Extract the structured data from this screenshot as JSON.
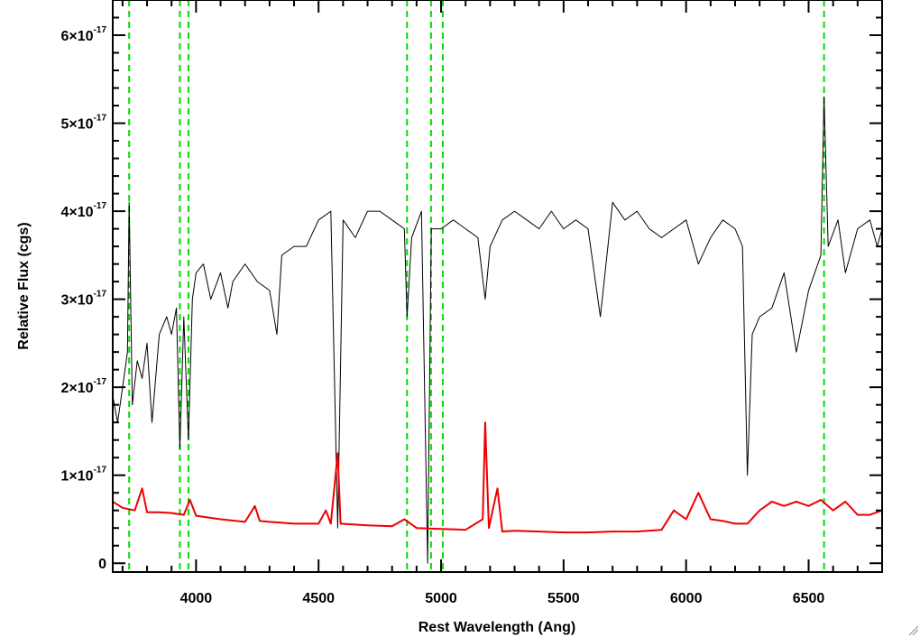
{
  "chart_data": {
    "type": "line",
    "xlabel": "Rest Wavelength (Ang)",
    "ylabel": "Relative Flux (cgs)",
    "xlim": [
      3660,
      6800
    ],
    "ylim": [
      -0.1,
      6.4
    ],
    "y_scale_note": "1e-17",
    "x_ticks": [
      {
        "value": 4000,
        "label": "4000"
      },
      {
        "value": 4500,
        "label": "4500"
      },
      {
        "value": 5000,
        "label": "5000"
      },
      {
        "value": 5500,
        "label": "5500"
      },
      {
        "value": 6000,
        "label": "6000"
      },
      {
        "value": 6500,
        "label": "6500"
      }
    ],
    "y_ticks": [
      {
        "value": 0,
        "mantissa": "0",
        "exp": ""
      },
      {
        "value": 1,
        "mantissa": "1×10",
        "exp": "-17"
      },
      {
        "value": 2,
        "mantissa": "2×10",
        "exp": "-17"
      },
      {
        "value": 3,
        "mantissa": "3×10",
        "exp": "-17"
      },
      {
        "value": 4,
        "mantissa": "4×10",
        "exp": "-17"
      },
      {
        "value": 5,
        "mantissa": "5×10",
        "exp": "-17"
      },
      {
        "value": 6,
        "mantissa": "6×10",
        "exp": "-17"
      }
    ],
    "grid": false,
    "reference_lines": {
      "color": "#00dd00",
      "style": "dashed",
      "x": [
        3727,
        3934,
        3969,
        4861,
        4959,
        5007,
        6563
      ]
    },
    "series": [
      {
        "role": "observed",
        "color": "#000000",
        "points": [
          [
            3660,
            1.9
          ],
          [
            3680,
            1.6
          ],
          [
            3700,
            2.0
          ],
          [
            3720,
            2.4
          ],
          [
            3727,
            4.1
          ],
          [
            3740,
            1.8
          ],
          [
            3760,
            2.3
          ],
          [
            3780,
            2.1
          ],
          [
            3800,
            2.5
          ],
          [
            3820,
            1.6
          ],
          [
            3850,
            2.6
          ],
          [
            3880,
            2.8
          ],
          [
            3900,
            2.6
          ],
          [
            3920,
            2.9
          ],
          [
            3934,
            1.3
          ],
          [
            3950,
            2.8
          ],
          [
            3969,
            1.4
          ],
          [
            3985,
            3.0
          ],
          [
            4000,
            3.3
          ],
          [
            4030,
            3.4
          ],
          [
            4060,
            3.0
          ],
          [
            4100,
            3.3
          ],
          [
            4130,
            2.9
          ],
          [
            4150,
            3.2
          ],
          [
            4200,
            3.4
          ],
          [
            4250,
            3.2
          ],
          [
            4300,
            3.1
          ],
          [
            4330,
            2.6
          ],
          [
            4350,
            3.5
          ],
          [
            4400,
            3.6
          ],
          [
            4450,
            3.6
          ],
          [
            4500,
            3.9
          ],
          [
            4550,
            4.0
          ],
          [
            4578,
            0.4
          ],
          [
            4600,
            3.9
          ],
          [
            4650,
            3.7
          ],
          [
            4700,
            4.0
          ],
          [
            4750,
            4.0
          ],
          [
            4800,
            3.9
          ],
          [
            4850,
            3.8
          ],
          [
            4861,
            2.8
          ],
          [
            4880,
            3.7
          ],
          [
            4920,
            4.0
          ],
          [
            4945,
            0.0
          ],
          [
            4960,
            3.8
          ],
          [
            5000,
            3.8
          ],
          [
            5050,
            3.9
          ],
          [
            5100,
            3.8
          ],
          [
            5150,
            3.7
          ],
          [
            5180,
            3.0
          ],
          [
            5200,
            3.6
          ],
          [
            5250,
            3.9
          ],
          [
            5300,
            4.0
          ],
          [
            5350,
            3.9
          ],
          [
            5400,
            3.8
          ],
          [
            5450,
            4.0
          ],
          [
            5500,
            3.8
          ],
          [
            5550,
            3.9
          ],
          [
            5600,
            3.8
          ],
          [
            5650,
            2.8
          ],
          [
            5700,
            4.1
          ],
          [
            5750,
            3.9
          ],
          [
            5800,
            4.0
          ],
          [
            5850,
            3.8
          ],
          [
            5900,
            3.7
          ],
          [
            5950,
            3.8
          ],
          [
            6000,
            3.9
          ],
          [
            6050,
            3.4
          ],
          [
            6100,
            3.7
          ],
          [
            6150,
            3.9
          ],
          [
            6200,
            3.8
          ],
          [
            6230,
            3.6
          ],
          [
            6250,
            1.0
          ],
          [
            6270,
            2.6
          ],
          [
            6300,
            2.8
          ],
          [
            6350,
            2.9
          ],
          [
            6400,
            3.3
          ],
          [
            6450,
            2.4
          ],
          [
            6500,
            3.1
          ],
          [
            6550,
            3.5
          ],
          [
            6563,
            5.3
          ],
          [
            6580,
            3.6
          ],
          [
            6620,
            3.9
          ],
          [
            6650,
            3.3
          ],
          [
            6700,
            3.8
          ],
          [
            6750,
            3.9
          ],
          [
            6780,
            3.6
          ],
          [
            6800,
            3.8
          ]
        ]
      },
      {
        "role": "model",
        "color": "#ee0000",
        "points": [
          [
            3660,
            0.7
          ],
          [
            3700,
            0.63
          ],
          [
            3750,
            0.6
          ],
          [
            3780,
            0.85
          ],
          [
            3800,
            0.58
          ],
          [
            3850,
            0.58
          ],
          [
            3900,
            0.57
          ],
          [
            3950,
            0.55
          ],
          [
            3975,
            0.72
          ],
          [
            4000,
            0.54
          ],
          [
            4100,
            0.5
          ],
          [
            4200,
            0.47
          ],
          [
            4240,
            0.65
          ],
          [
            4260,
            0.48
          ],
          [
            4300,
            0.47
          ],
          [
            4400,
            0.45
          ],
          [
            4500,
            0.45
          ],
          [
            4530,
            0.6
          ],
          [
            4550,
            0.45
          ],
          [
            4578,
            1.25
          ],
          [
            4590,
            0.45
          ],
          [
            4700,
            0.43
          ],
          [
            4800,
            0.42
          ],
          [
            4850,
            0.5
          ],
          [
            4900,
            0.4
          ],
          [
            5000,
            0.39
          ],
          [
            5100,
            0.38
          ],
          [
            5170,
            0.5
          ],
          [
            5180,
            1.6
          ],
          [
            5195,
            0.4
          ],
          [
            5230,
            0.85
          ],
          [
            5250,
            0.36
          ],
          [
            5300,
            0.37
          ],
          [
            5400,
            0.36
          ],
          [
            5500,
            0.35
          ],
          [
            5600,
            0.35
          ],
          [
            5700,
            0.36
          ],
          [
            5800,
            0.36
          ],
          [
            5900,
            0.38
          ],
          [
            5950,
            0.6
          ],
          [
            6000,
            0.5
          ],
          [
            6050,
            0.8
          ],
          [
            6100,
            0.5
          ],
          [
            6150,
            0.48
          ],
          [
            6200,
            0.45
          ],
          [
            6250,
            0.45
          ],
          [
            6300,
            0.6
          ],
          [
            6350,
            0.7
          ],
          [
            6400,
            0.65
          ],
          [
            6450,
            0.7
          ],
          [
            6500,
            0.65
          ],
          [
            6550,
            0.72
          ],
          [
            6600,
            0.6
          ],
          [
            6650,
            0.7
          ],
          [
            6700,
            0.55
          ],
          [
            6750,
            0.55
          ],
          [
            6800,
            0.6
          ]
        ]
      }
    ]
  }
}
